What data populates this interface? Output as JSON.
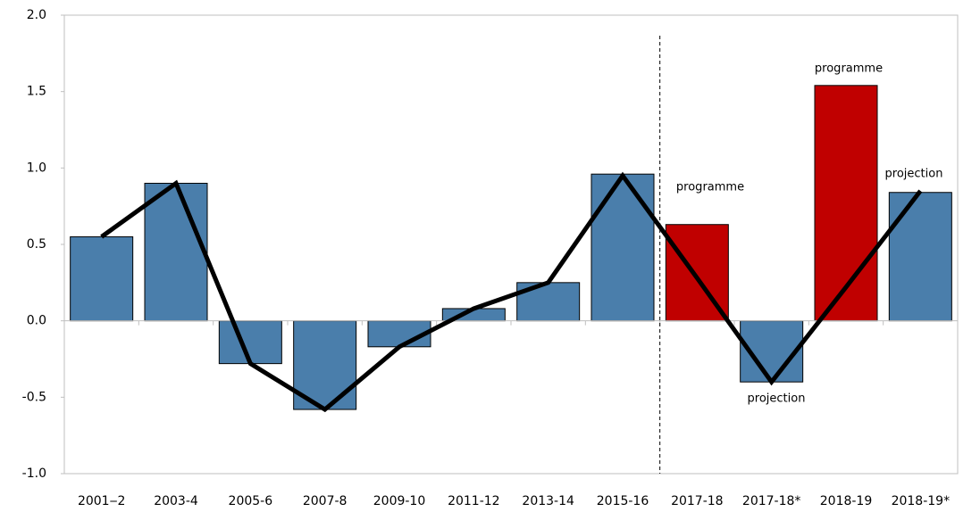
{
  "chart_data": {
    "type": "bar",
    "categories": [
      "2001‒2",
      "2003-4",
      "2005-6",
      "2007-8",
      "2009-10",
      "2011-12",
      "2013-14",
      "2015-16",
      "2017-18",
      "2017-18*",
      "2018-19",
      "2018-19*"
    ],
    "values": [
      0.55,
      0.9,
      -0.28,
      -0.58,
      -0.17,
      0.08,
      0.25,
      0.96,
      0.63,
      -0.4,
      1.54,
      0.84
    ],
    "colors": [
      "#4a7eab",
      "#4a7eab",
      "#4a7eab",
      "#4a7eab",
      "#4a7eab",
      "#4a7eab",
      "#4a7eab",
      "#4a7eab",
      "#c00000",
      "#4a7eab",
      "#c00000",
      "#4a7eab"
    ],
    "lines": [
      {
        "color": "#000000",
        "dashed": false,
        "values": [
          0.55,
          0.9,
          -0.28,
          -0.58,
          -0.17,
          0.08,
          0.25,
          0.95,
          0.28,
          -0.4,
          0.22,
          0.85
        ]
      },
      {
        "color": "#6cb0e8",
        "dashed": true,
        "values": [
          null,
          null,
          null,
          null,
          null,
          null,
          null,
          null,
          0.62,
          null,
          1.55,
          null
        ]
      }
    ],
    "annotations": [
      "programme",
      "programme",
      "projection",
      "projection"
    ],
    "ylim": [
      -1.0,
      2.0
    ],
    "yticks": [
      {
        "value": -1.0,
        "label": "-1.0"
      },
      -0.5,
      {
        "value": 0.0,
        "label": "0.0"
      },
      0.5,
      {
        "value": 1.0,
        "label": "1.0"
      },
      1.5,
      {
        "value": 2.0,
        "label": "2.0"
      }
    ]
  }
}
